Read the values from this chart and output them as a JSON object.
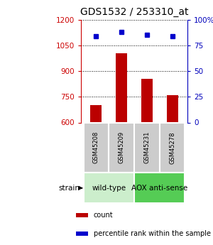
{
  "title": "GDS1532 / 253310_at",
  "samples": [
    "GSM45208",
    "GSM45209",
    "GSM45231",
    "GSM45278"
  ],
  "counts": [
    700,
    1005,
    855,
    760
  ],
  "percentiles": [
    84,
    88,
    85,
    84
  ],
  "ylim_left": [
    600,
    1200
  ],
  "ylim_right": [
    0,
    100
  ],
  "yticks_left": [
    600,
    750,
    900,
    1050,
    1200
  ],
  "yticks_right": [
    0,
    25,
    50,
    75,
    100
  ],
  "bar_color": "#bb0000",
  "dot_color": "#0000cc",
  "group_configs": [
    {
      "indices": [
        0,
        1
      ],
      "label": "wild-type",
      "color": "#cceecc"
    },
    {
      "indices": [
        2,
        3
      ],
      "label": "AOX anti-sense",
      "color": "#55cc55"
    }
  ],
  "strain_label": "strain",
  "legend_count_label": "count",
  "legend_percentile_label": "percentile rank within the sample",
  "title_fontsize": 10,
  "axis_color_left": "#cc0000",
  "axis_color_right": "#0000bb",
  "grid_linestyle": "dotted",
  "bar_width": 0.45,
  "sample_box_color": "#cccccc",
  "sample_box_edge_color": "#ffffff"
}
